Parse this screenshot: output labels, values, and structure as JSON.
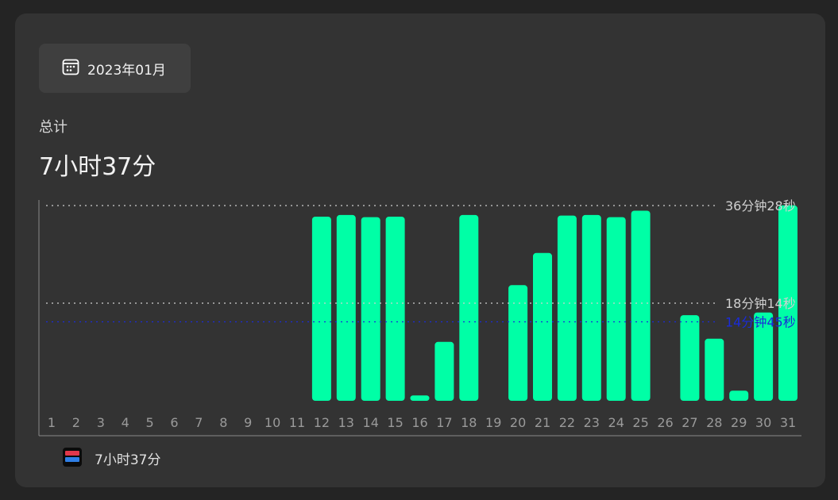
{
  "header": {
    "date_label": "2023年01月",
    "calendar_icon": "calendar-icon"
  },
  "summary": {
    "total_label": "总计",
    "total_value": "7小时37分"
  },
  "legend": {
    "app_icon": "beat-saber-icon",
    "app_total": "7小时37分"
  },
  "colors": {
    "bar": "#00ffa6",
    "average_line": "#1a2bd8",
    "ref_line": "#d0d0d0",
    "background": "#333333"
  },
  "chart_data": {
    "type": "bar",
    "categories": [
      "1",
      "2",
      "3",
      "4",
      "5",
      "6",
      "7",
      "8",
      "9",
      "10",
      "11",
      "12",
      "13",
      "14",
      "15",
      "16",
      "17",
      "18",
      "19",
      "20",
      "21",
      "22",
      "23",
      "24",
      "25",
      "26",
      "27",
      "28",
      "29",
      "30",
      "31"
    ],
    "unit": "minutes",
    "values": [
      0,
      0,
      0,
      0,
      0,
      0,
      0,
      0,
      0,
      0,
      0,
      34.4,
      34.7,
      34.3,
      34.4,
      1.0,
      11.0,
      34.7,
      0,
      21.6,
      27.6,
      34.6,
      34.7,
      34.3,
      35.5,
      0,
      16.0,
      11.6,
      1.9,
      16.5,
      36.5
    ],
    "reference_lines": [
      {
        "label": "36分钟28秒",
        "value": 36.47,
        "style": "dotted",
        "color": "#d0d0d0"
      },
      {
        "label": "18分钟14秒",
        "value": 18.23,
        "style": "dotted",
        "color": "#d0d0d0"
      },
      {
        "label": "14分钟45秒",
        "value": 14.75,
        "style": "dotted",
        "color": "#1a2bd8"
      }
    ],
    "ylim": [
      0,
      36.47
    ],
    "grid": false,
    "legend_position": "bottom-left"
  }
}
